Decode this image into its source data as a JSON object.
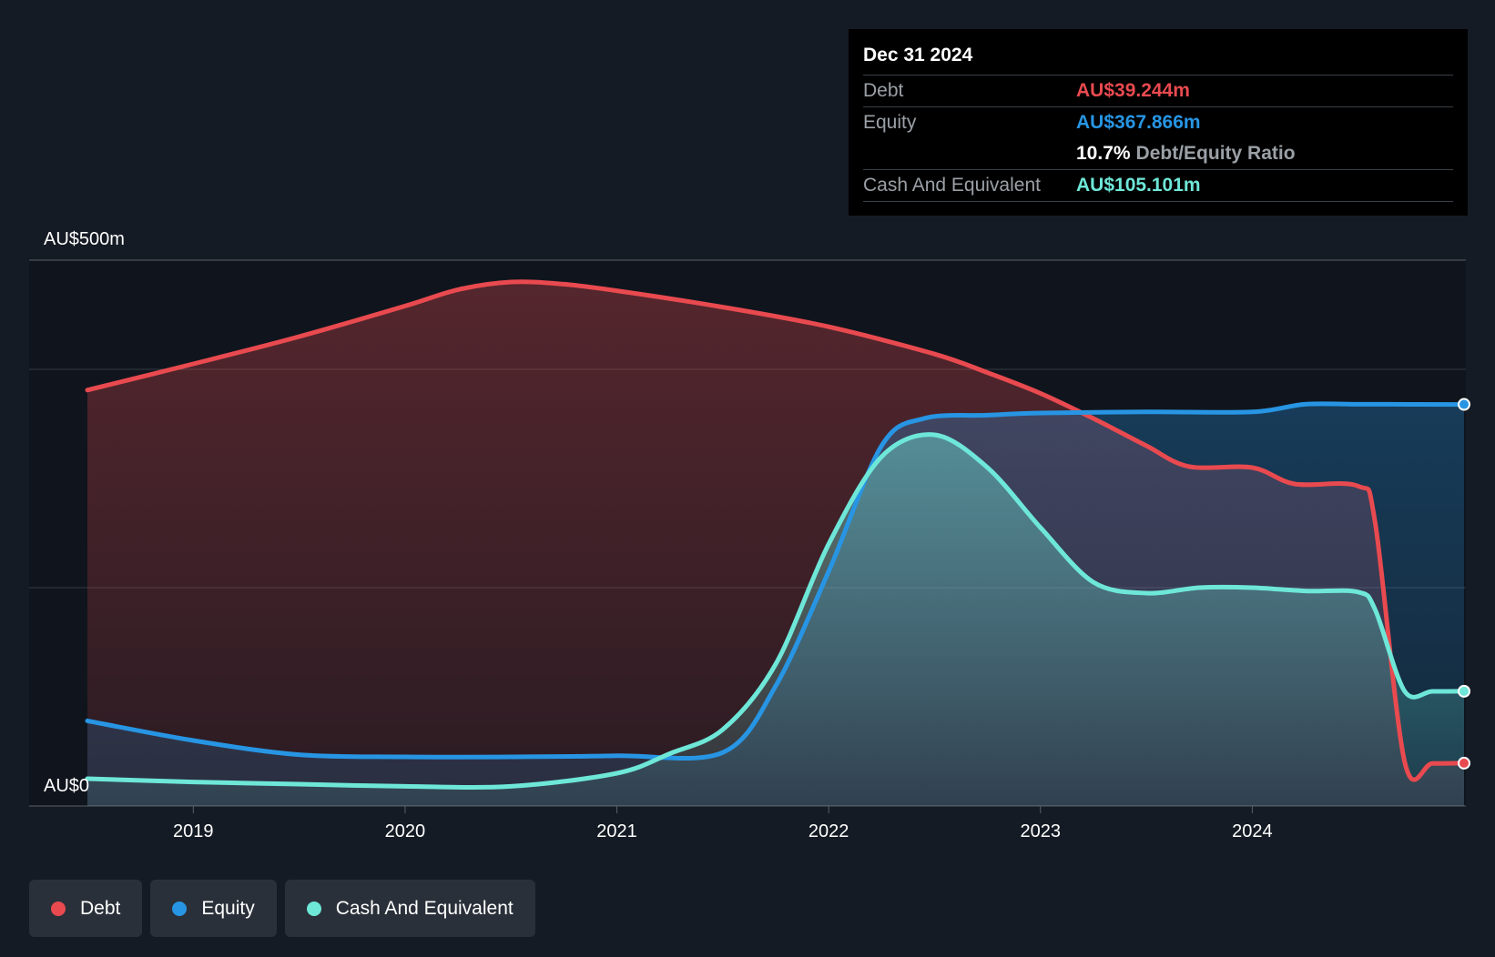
{
  "tooltip": {
    "date": "Dec 31 2024",
    "rows": [
      {
        "label": "Debt",
        "value": "AU$39.244m",
        "color": "#e84a4f"
      },
      {
        "label": "Equity",
        "value": "AU$367.866m",
        "color": "#2795e3"
      },
      {
        "label": "",
        "value": "10.7%",
        "suffix": "Debt/Equity Ratio"
      },
      {
        "label": "Cash And Equivalent",
        "value": "AU$105.101m",
        "color": "#6ee7d8"
      }
    ]
  },
  "legend": [
    {
      "label": "Debt",
      "color": "#e84a4f"
    },
    {
      "label": "Equity",
      "color": "#2795e3"
    },
    {
      "label": "Cash And Equivalent",
      "color": "#6ee7d8"
    }
  ],
  "chart_data": {
    "type": "area",
    "x_tick_labels": [
      "2019",
      "2020",
      "2021",
      "2022",
      "2023",
      "2024"
    ],
    "y_tick_labels": [
      "AU$500m",
      "AU$0"
    ],
    "ylim": [
      0,
      500
    ],
    "xlim": [
      2018.5,
      2025.0
    ],
    "grid": true,
    "legend_position": "bottom-left",
    "series": [
      {
        "name": "Debt",
        "color": "#e84a4f",
        "points": [
          [
            2018.5,
            381
          ],
          [
            2019.0,
            405
          ],
          [
            2019.5,
            430
          ],
          [
            2020.0,
            458
          ],
          [
            2020.25,
            473
          ],
          [
            2020.5,
            480
          ],
          [
            2020.75,
            478
          ],
          [
            2021.0,
            472
          ],
          [
            2021.5,
            457
          ],
          [
            2022.0,
            439
          ],
          [
            2022.5,
            414
          ],
          [
            2022.75,
            397
          ],
          [
            2023.0,
            378
          ],
          [
            2023.25,
            355
          ],
          [
            2023.5,
            330
          ],
          [
            2023.7,
            311
          ],
          [
            2024.0,
            310
          ],
          [
            2024.2,
            295
          ],
          [
            2024.5,
            293
          ],
          [
            2024.58,
            260
          ],
          [
            2024.72,
            40
          ],
          [
            2024.85,
            39
          ],
          [
            2025.0,
            39.244
          ]
        ]
      },
      {
        "name": "Equity",
        "color": "#2795e3",
        "points": [
          [
            2018.5,
            78
          ],
          [
            2019.0,
            60
          ],
          [
            2019.5,
            47
          ],
          [
            2020.0,
            45
          ],
          [
            2020.5,
            45
          ],
          [
            2021.0,
            46
          ],
          [
            2021.5,
            49
          ],
          [
            2021.75,
            110
          ],
          [
            2022.0,
            215
          ],
          [
            2022.25,
            330
          ],
          [
            2022.45,
            355
          ],
          [
            2022.75,
            358
          ],
          [
            2023.0,
            360
          ],
          [
            2023.5,
            361
          ],
          [
            2024.0,
            361
          ],
          [
            2024.25,
            368
          ],
          [
            2024.5,
            368
          ],
          [
            2025.0,
            367.866
          ]
        ]
      },
      {
        "name": "Cash And Equivalent",
        "color": "#6ee7d8",
        "points": [
          [
            2018.5,
            25
          ],
          [
            2019.0,
            22
          ],
          [
            2019.5,
            20
          ],
          [
            2020.0,
            18
          ],
          [
            2020.5,
            18
          ],
          [
            2021.0,
            30
          ],
          [
            2021.25,
            48
          ],
          [
            2021.5,
            70
          ],
          [
            2021.75,
            130
          ],
          [
            2022.0,
            240
          ],
          [
            2022.25,
            320
          ],
          [
            2022.5,
            340
          ],
          [
            2022.75,
            310
          ],
          [
            2023.0,
            255
          ],
          [
            2023.25,
            205
          ],
          [
            2023.5,
            195
          ],
          [
            2023.75,
            200
          ],
          [
            2024.0,
            200
          ],
          [
            2024.25,
            197
          ],
          [
            2024.5,
            196
          ],
          [
            2024.58,
            180
          ],
          [
            2024.72,
            105
          ],
          [
            2024.85,
            105
          ],
          [
            2025.0,
            105.101
          ]
        ]
      }
    ]
  }
}
